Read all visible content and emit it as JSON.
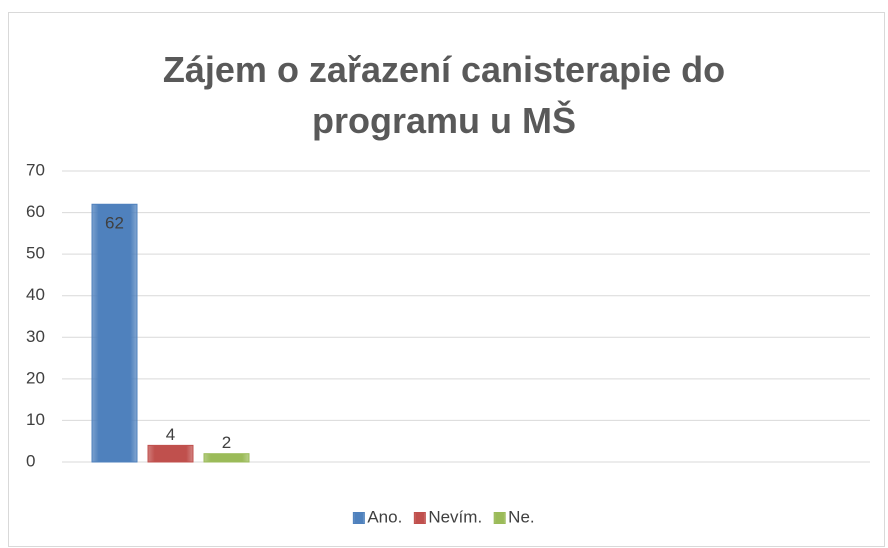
{
  "chart_data": {
    "type": "bar",
    "title": "Zájem o zařazení canisterapie do programu u MŠ",
    "categories": [
      null
    ],
    "series": [
      {
        "name": "Ano.",
        "color": "#4f81bd",
        "values": [
          62
        ]
      },
      {
        "name": "Nevím.",
        "color": "#c0504d",
        "values": [
          4
        ]
      },
      {
        "name": "Ne.",
        "color": "#9bbb59",
        "values": [
          2
        ]
      }
    ],
    "ylim": [
      0,
      70
    ],
    "yticks": [
      0,
      10,
      20,
      30,
      40,
      50,
      60,
      70
    ],
    "grid": true,
    "legend": "bottom"
  }
}
